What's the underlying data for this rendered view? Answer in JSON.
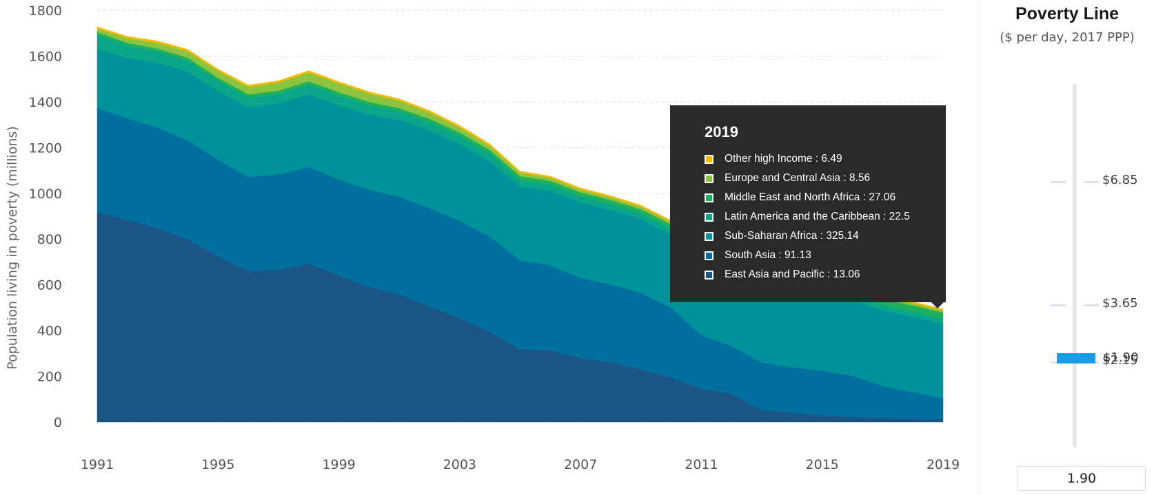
{
  "chart_data": {
    "type": "area",
    "stacked": true,
    "title": "",
    "xlabel": "",
    "ylabel": "Population living in poverty (millions)",
    "ylim": [
      0,
      1800
    ],
    "yticks": [
      0,
      200,
      400,
      600,
      800,
      1000,
      1200,
      1400,
      1600,
      1800
    ],
    "xlim": [
      1991,
      2019
    ],
    "xticks": [
      1991,
      1995,
      1999,
      2003,
      2007,
      2011,
      2015,
      2019
    ],
    "grid": "horizontal dashed",
    "x": [
      1991,
      1992,
      1993,
      1994,
      1995,
      1996,
      1997,
      1998,
      1999,
      2000,
      2001,
      2002,
      2003,
      2004,
      2005,
      2006,
      2007,
      2008,
      2009,
      2010,
      2011,
      2012,
      2013,
      2014,
      2015,
      2016,
      2017,
      2018,
      2019
    ],
    "series": [
      {
        "name": "East Asia and Pacific",
        "color": "#1a5585",
        "values": [
          918,
          883,
          847,
          797,
          725,
          660,
          665,
          693,
          640,
          590,
          558,
          505,
          455,
          395,
          317,
          313,
          280,
          262,
          230,
          195,
          145,
          122,
          52,
          40,
          30,
          22,
          18,
          15,
          13.06
        ]
      },
      {
        "name": "South Asia",
        "color": "#02709e",
        "values": [
          455,
          445,
          440,
          435,
          422,
          412,
          418,
          422,
          420,
          425,
          427,
          430,
          425,
          415,
          390,
          372,
          350,
          340,
          335,
          305,
          235,
          210,
          208,
          200,
          195,
          180,
          140,
          115,
          91.13
        ]
      },
      {
        "name": "Sub-Saharan Africa",
        "color": "#00919a",
        "values": [
          258,
          262,
          283,
          300,
          300,
          305,
          310,
          318,
          322,
          330,
          335,
          340,
          335,
          330,
          322,
          325,
          330,
          325,
          322,
          320,
          315,
          320,
          325,
          322,
          325,
          330,
          330,
          330,
          325.14
        ]
      },
      {
        "name": "Latin America and the Caribbean",
        "color": "#0aa68a",
        "values": [
          62,
          55,
          50,
          48,
          45,
          42,
          42,
          43,
          45,
          40,
          38,
          36,
          35,
          33,
          30,
          28,
          27,
          26,
          25,
          25,
          24,
          23,
          23,
          23,
          23,
          23,
          23,
          23,
          22.5
        ]
      },
      {
        "name": "Middle East and North Africa",
        "color": "#1fb05a",
        "values": [
          12,
          13,
          13,
          13,
          13,
          14,
          14,
          14,
          15,
          15,
          15,
          15,
          16,
          16,
          16,
          17,
          17,
          18,
          18,
          19,
          20,
          22,
          24,
          25,
          26,
          27,
          27,
          27,
          27.06
        ]
      },
      {
        "name": "Europe and Central Asia",
        "color": "#8cc43f",
        "values": [
          15,
          20,
          25,
          28,
          30,
          32,
          35,
          38,
          38,
          36,
          32,
          28,
          22,
          18,
          15,
          13,
          12,
          11,
          11,
          10,
          10,
          9,
          9,
          9,
          9,
          9,
          9,
          9,
          8.56
        ]
      },
      {
        "name": "Other high Income",
        "color": "#f7b900",
        "values": [
          8,
          8,
          8,
          8,
          8,
          8,
          8,
          8,
          8,
          8,
          8,
          8,
          8,
          8,
          7,
          7,
          7,
          7,
          7,
          7,
          7,
          7,
          7,
          7,
          7,
          7,
          7,
          7,
          6.49
        ]
      }
    ]
  },
  "tooltip": {
    "title": "2019",
    "rows": [
      {
        "label": "Other high Income : 6.49",
        "color": "#f7b900"
      },
      {
        "label": "Europe and Central Asia : 8.56",
        "color": "#8cc43f"
      },
      {
        "label": "Middle East and North Africa : 27.06",
        "color": "#1fb05a"
      },
      {
        "label": "Latin America and the Caribbean : 22.5",
        "color": "#0aa68a"
      },
      {
        "label": "Sub-Saharan Africa : 325.14",
        "color": "#00919a"
      },
      {
        "label": "South Asia : 91.13",
        "color": "#02709e"
      },
      {
        "label": "East Asia and Pacific : 13.06",
        "color": "#1a5585"
      }
    ]
  },
  "panel": {
    "title": "Poverty Line",
    "subtitle": "($ per day, 2017 PPP)",
    "marks": [
      {
        "value": 6.85,
        "label": "$6.85"
      },
      {
        "value": 3.65,
        "label": "$3.65"
      },
      {
        "value": 2.15,
        "label": "$2.15"
      }
    ],
    "selected_label": "$1.90",
    "input_value": "1.90"
  }
}
